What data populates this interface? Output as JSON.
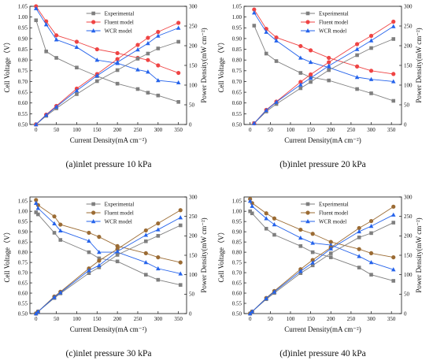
{
  "colors": {
    "experimental": "#7f7f7f",
    "fluent_red": "#ef4444",
    "fluent_brown": "#9b6b33",
    "wcr": "#2563eb"
  },
  "chart_data": [
    {
      "type": "line",
      "caption": "(a)inlet pressure 10 kPa",
      "xlabel": "Current Density(mA cm⁻²)",
      "ylabel_left": "Cell Voltage（V）",
      "ylabel_right": "Power Density(mW cm⁻²)",
      "x_ticks": [
        0,
        50,
        100,
        150,
        200,
        250,
        300,
        350
      ],
      "y_ticks_left": [
        "0.50",
        "0.55",
        "0.60",
        "0.65",
        "0.70",
        "0.75",
        "0.80",
        "0.85",
        "0.90",
        "0.95",
        "1.00",
        "1.05"
      ],
      "y_ticks_right": [
        0,
        50,
        100,
        150,
        200,
        250,
        300
      ],
      "xlim": [
        -15,
        370
      ],
      "ylim_left": [
        0.5,
        1.05
      ],
      "ylim_right": [
        0,
        300
      ],
      "legend_position": "top-center",
      "series": [
        {
          "name": "Experimental",
          "color_key": "experimental",
          "marker": "square",
          "axis": "left",
          "x": [
            0,
            25,
            50,
            100,
            150,
            200,
            250,
            275,
            300,
            350
          ],
          "y": [
            0.985,
            0.84,
            0.81,
            0.765,
            0.725,
            0.69,
            0.665,
            0.648,
            0.635,
            0.605
          ]
        },
        {
          "name": "Fluent model",
          "color_key": "fluent_red",
          "marker": "circle",
          "axis": "left",
          "x": [
            0,
            25,
            50,
            100,
            150,
            200,
            250,
            275,
            300,
            350
          ],
          "y": [
            1.05,
            0.98,
            0.915,
            0.885,
            0.85,
            0.832,
            0.81,
            0.8,
            0.775,
            0.74
          ]
        },
        {
          "name": "WCR model",
          "color_key": "wcr",
          "marker": "triangle",
          "axis": "left",
          "x": [
            0,
            25,
            50,
            100,
            150,
            200,
            250,
            275,
            300,
            350
          ],
          "y": [
            1.04,
            0.965,
            0.895,
            0.86,
            0.8,
            0.785,
            0.755,
            0.745,
            0.705,
            0.695
          ]
        },
        {
          "name": "Experimental",
          "color_key": "experimental",
          "marker": "square",
          "axis": "right",
          "legend": false,
          "x": [
            0,
            25,
            50,
            100,
            150,
            200,
            250,
            275,
            300,
            350
          ],
          "y": [
            0,
            22,
            41,
            77,
            110,
            138,
            167,
            180,
            193,
            210
          ]
        },
        {
          "name": "Fluent model",
          "color_key": "fluent_red",
          "marker": "circle",
          "axis": "right",
          "legend": false,
          "x": [
            0,
            25,
            50,
            100,
            150,
            200,
            250,
            275,
            300,
            350
          ],
          "y": [
            0,
            25,
            47,
            91,
            128,
            166,
            202,
            220,
            235,
            258
          ]
        },
        {
          "name": "WCR model",
          "color_key": "wcr",
          "marker": "triangle",
          "axis": "right",
          "legend": false,
          "x": [
            0,
            25,
            50,
            100,
            150,
            200,
            250,
            275,
            300,
            350
          ],
          "y": [
            0,
            24,
            45,
            86,
            124,
            158,
            190,
            206,
            225,
            245
          ]
        }
      ]
    },
    {
      "type": "line",
      "caption": "(b)inlet pressure 20 kPa",
      "xlabel": "Current Density(mA cm⁻²)",
      "ylabel_left": "Cell Voltage（V）",
      "ylabel_right": "Power Density(mW cm⁻²)",
      "x_ticks": [
        0,
        50,
        100,
        150,
        200,
        250,
        300,
        350
      ],
      "y_ticks_left": [
        "0.50",
        "0.55",
        "0.60",
        "0.65",
        "0.70",
        "0.75",
        "0.80",
        "0.85",
        "0.90",
        "0.95",
        "1.00",
        "1.05"
      ],
      "y_ticks_right": [
        0,
        50,
        100,
        150,
        200,
        250,
        300
      ],
      "xlim": [
        -15,
        375
      ],
      "ylim_left": [
        0.5,
        1.05
      ],
      "ylim_right": [
        0,
        300
      ],
      "legend_position": "top-center",
      "series": [
        {
          "name": "Experimental",
          "color_key": "experimental",
          "marker": "square",
          "axis": "left",
          "x": [
            10,
            40,
            65,
            125,
            150,
            195,
            265,
            300,
            355
          ],
          "y": [
            0.96,
            0.83,
            0.795,
            0.74,
            0.72,
            0.705,
            0.665,
            0.645,
            0.61
          ]
        },
        {
          "name": "Fluent model",
          "color_key": "fluent_red",
          "marker": "circle",
          "axis": "left",
          "x": [
            10,
            40,
            65,
            125,
            150,
            195,
            265,
            300,
            355
          ],
          "y": [
            1.035,
            0.945,
            0.905,
            0.865,
            0.845,
            0.81,
            0.77,
            0.75,
            0.735
          ]
        },
        {
          "name": "WCR model",
          "color_key": "wcr",
          "marker": "triangle",
          "axis": "left",
          "x": [
            10,
            40,
            65,
            125,
            150,
            195,
            265,
            300,
            355
          ],
          "y": [
            1.02,
            0.93,
            0.89,
            0.81,
            0.79,
            0.765,
            0.72,
            0.71,
            0.7
          ]
        },
        {
          "name": "Experimental",
          "color_key": "experimental",
          "marker": "square",
          "axis": "right",
          "legend": false,
          "x": [
            10,
            40,
            65,
            125,
            150,
            195,
            265,
            300,
            355
          ],
          "y": [
            3,
            33,
            52,
            92,
            108,
            138,
            176,
            194,
            217
          ]
        },
        {
          "name": "Fluent model",
          "color_key": "fluent_red",
          "marker": "circle",
          "axis": "right",
          "legend": false,
          "x": [
            10,
            40,
            65,
            125,
            150,
            195,
            265,
            300,
            355
          ],
          "y": [
            3,
            37,
            58,
            108,
            127,
            158,
            204,
            225,
            261
          ]
        },
        {
          "name": "WCR model",
          "color_key": "wcr",
          "marker": "triangle",
          "axis": "right",
          "legend": false,
          "x": [
            10,
            40,
            65,
            125,
            150,
            195,
            265,
            300,
            355
          ],
          "y": [
            3,
            36,
            57,
            101,
            118,
            149,
            191,
            213,
            249
          ]
        }
      ]
    },
    {
      "type": "line",
      "caption": "(c)inlet pressure 30 kPa",
      "xlabel": "Current Density(mA cm⁻²)",
      "ylabel_left": "Cell Voltage（V）",
      "ylabel_right": "Power Density(mW cm⁻²)",
      "x_ticks": [
        0,
        50,
        100,
        150,
        200,
        250,
        300,
        350
      ],
      "y_ticks_left": [
        "0.50",
        "0.55",
        "0.60",
        "0.65",
        "0.70",
        "0.75",
        "0.80",
        "0.85",
        "0.90",
        "0.95",
        "1.00",
        "1.05"
      ],
      "y_ticks_right": [
        0,
        50,
        100,
        150,
        200,
        250,
        300
      ],
      "xlim": [
        -15,
        370
      ],
      "ylim_left": [
        0.5,
        1.07
      ],
      "ylim_right": [
        0,
        300
      ],
      "legend_position": "top-center",
      "series": [
        {
          "name": "Experimental",
          "color_key": "experimental",
          "marker": "square",
          "axis": "left",
          "x": [
            0,
            5,
            45,
            60,
            130,
            155,
            200,
            270,
            300,
            355
          ],
          "y": [
            0.995,
            0.985,
            0.895,
            0.86,
            0.8,
            0.77,
            0.755,
            0.69,
            0.665,
            0.64
          ]
        },
        {
          "name": "Fluent model",
          "color_key": "fluent_brown",
          "marker": "circle",
          "axis": "left",
          "x": [
            0,
            5,
            45,
            60,
            130,
            155,
            200,
            270,
            300,
            355
          ],
          "y": [
            1.055,
            1.03,
            0.975,
            0.935,
            0.895,
            0.875,
            0.83,
            0.795,
            0.775,
            0.75
          ]
        },
        {
          "name": "WCR model",
          "color_key": "wcr",
          "marker": "triangle",
          "axis": "left",
          "x": [
            0,
            5,
            45,
            60,
            130,
            155,
            200,
            270,
            300,
            355
          ],
          "y": [
            1.04,
            1.015,
            0.94,
            0.905,
            0.855,
            0.8,
            0.8,
            0.75,
            0.72,
            0.695
          ]
        },
        {
          "name": "Experimental",
          "color_key": "experimental",
          "marker": "square",
          "axis": "right",
          "legend": false,
          "x": [
            0,
            5,
            45,
            60,
            130,
            155,
            200,
            270,
            300,
            355
          ],
          "y": [
            0,
            5,
            40,
            52,
            104,
            119,
            151,
            186,
            200,
            227
          ]
        },
        {
          "name": "Fluent model",
          "color_key": "fluent_brown",
          "marker": "circle",
          "axis": "right",
          "legend": false,
          "x": [
            0,
            5,
            45,
            60,
            130,
            155,
            200,
            270,
            300,
            355
          ],
          "y": [
            0,
            5,
            44,
            56,
            116,
            136,
            166,
            214,
            232,
            266
          ]
        },
        {
          "name": "WCR model",
          "color_key": "wcr",
          "marker": "triangle",
          "axis": "right",
          "legend": false,
          "x": [
            0,
            5,
            45,
            60,
            130,
            155,
            200,
            270,
            300,
            355
          ],
          "y": [
            0,
            5,
            42,
            54,
            111,
            124,
            160,
            202,
            216,
            247
          ]
        }
      ]
    },
    {
      "type": "line",
      "caption": "(d)inlet pressure 40 kPa",
      "xlabel": "Current Density(mA cm⁻²)",
      "ylabel_left": "Cell Voltage（V）",
      "ylabel_right": "Power Density(mW cm⁻²)",
      "x_ticks": [
        0,
        50,
        100,
        150,
        200,
        250,
        300,
        350
      ],
      "y_ticks_left": [
        "0.50",
        "0.55",
        "0.60",
        "0.65",
        "0.70",
        "0.75",
        "0.80",
        "0.85",
        "0.90",
        "0.95",
        "1.00",
        "1.05"
      ],
      "y_ticks_right": [
        0,
        50,
        100,
        150,
        200,
        250,
        300
      ],
      "xlim": [
        -15,
        375
      ],
      "ylim_left": [
        0.5,
        1.07
      ],
      "ylim_right": [
        0,
        300
      ],
      "legend_position": "top-center",
      "series": [
        {
          "name": "Experimental",
          "color_key": "experimental",
          "marker": "square",
          "axis": "left",
          "x": [
            0,
            5,
            40,
            60,
            125,
            155,
            200,
            270,
            300,
            355
          ],
          "y": [
            1.0,
            0.99,
            0.915,
            0.885,
            0.83,
            0.8,
            0.775,
            0.725,
            0.69,
            0.66
          ]
        },
        {
          "name": "Fluent model",
          "color_key": "fluent_brown",
          "marker": "circle",
          "axis": "left",
          "x": [
            0,
            5,
            40,
            60,
            125,
            155,
            200,
            270,
            300,
            355
          ],
          "y": [
            1.06,
            1.04,
            0.99,
            0.965,
            0.91,
            0.89,
            0.85,
            0.815,
            0.795,
            0.775
          ]
        },
        {
          "name": "WCR model",
          "color_key": "wcr",
          "marker": "triangle",
          "axis": "left",
          "x": [
            0,
            5,
            40,
            60,
            125,
            155,
            200,
            270,
            300,
            355
          ],
          "y": [
            1.05,
            1.025,
            0.965,
            0.935,
            0.87,
            0.845,
            0.835,
            0.78,
            0.75,
            0.715
          ]
        },
        {
          "name": "Experimental",
          "color_key": "experimental",
          "marker": "square",
          "axis": "right",
          "legend": false,
          "x": [
            0,
            5,
            40,
            60,
            125,
            155,
            200,
            270,
            300,
            355
          ],
          "y": [
            0,
            5,
            37,
            53,
            104,
            124,
            155,
            196,
            207,
            234
          ]
        },
        {
          "name": "Fluent model",
          "color_key": "fluent_brown",
          "marker": "circle",
          "axis": "right",
          "legend": false,
          "x": [
            0,
            5,
            40,
            60,
            125,
            155,
            200,
            270,
            300,
            355
          ],
          "y": [
            0,
            5,
            40,
            58,
            114,
            138,
            170,
            220,
            238,
            275
          ]
        },
        {
          "name": "WCR model",
          "color_key": "wcr",
          "marker": "triangle",
          "axis": "right",
          "legend": false,
          "x": [
            0,
            5,
            40,
            60,
            125,
            155,
            200,
            270,
            300,
            355
          ],
          "y": [
            0,
            5,
            39,
            56,
            109,
            131,
            167,
            211,
            225,
            254
          ]
        }
      ]
    }
  ]
}
